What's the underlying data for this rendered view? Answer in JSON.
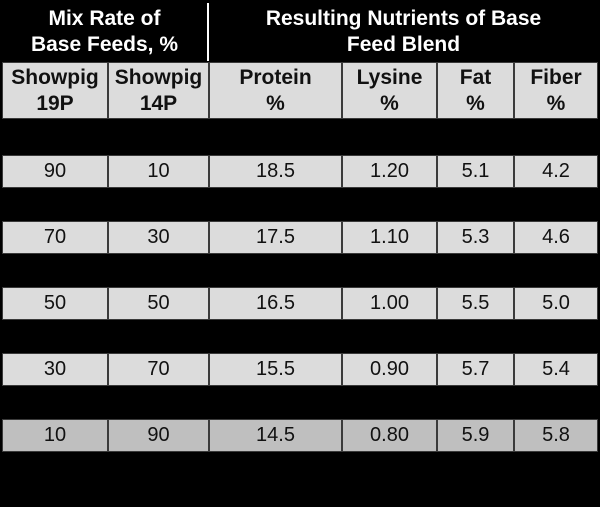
{
  "table": {
    "group_headers": [
      {
        "line1": "Mix Rate of",
        "line2": "Base Feeds, %"
      },
      {
        "line1": "Resulting Nutrients of Base",
        "line2": "Feed Blend"
      }
    ],
    "columns": [
      {
        "line1": "Showpig",
        "line2": "19P"
      },
      {
        "line1": "Showpig",
        "line2": "14P"
      },
      {
        "line1": "Protein",
        "line2": "%"
      },
      {
        "line1": "Lysine",
        "line2": "%"
      },
      {
        "line1": "Fat",
        "line2": "%"
      },
      {
        "line1": "Fiber",
        "line2": "%"
      }
    ],
    "rows": [
      [
        "90",
        "10",
        "18.5",
        "1.20",
        "5.1",
        "4.2"
      ],
      [
        "70",
        "30",
        "17.5",
        "1.10",
        "5.3",
        "4.6"
      ],
      [
        "50",
        "50",
        "16.5",
        "1.00",
        "5.5",
        "5.0"
      ],
      [
        "30",
        "70",
        "15.5",
        "0.90",
        "5.7",
        "5.4"
      ],
      [
        "10",
        "90",
        "14.5",
        "0.80",
        "5.9",
        "5.8"
      ]
    ]
  },
  "colors": {
    "background": "#000000",
    "header_text": "#ffffff",
    "cell_background": "#dcdcdc",
    "last_row_cell_background": "#bfbfbf",
    "cell_border": "#3a3a3a",
    "cell_text": "#111111",
    "header_divider": "#ffffff"
  },
  "chart_data": {
    "type": "table",
    "title": "",
    "column_groups": [
      {
        "label": "Mix Rate of Base Feeds, %",
        "span": 2
      },
      {
        "label": "Resulting Nutrients of Base Feed Blend",
        "span": 4
      }
    ],
    "columns": [
      "Showpig 19P",
      "Showpig 14P",
      "Protein %",
      "Lysine %",
      "Fat %",
      "Fiber %"
    ],
    "rows": [
      [
        90,
        10,
        18.5,
        1.2,
        5.1,
        4.2
      ],
      [
        70,
        30,
        17.5,
        1.1,
        5.3,
        4.6
      ],
      [
        50,
        50,
        16.5,
        1.0,
        5.5,
        5.0
      ],
      [
        30,
        70,
        15.5,
        0.9,
        5.7,
        5.4
      ],
      [
        10,
        90,
        14.5,
        0.8,
        5.9,
        5.8
      ]
    ]
  }
}
